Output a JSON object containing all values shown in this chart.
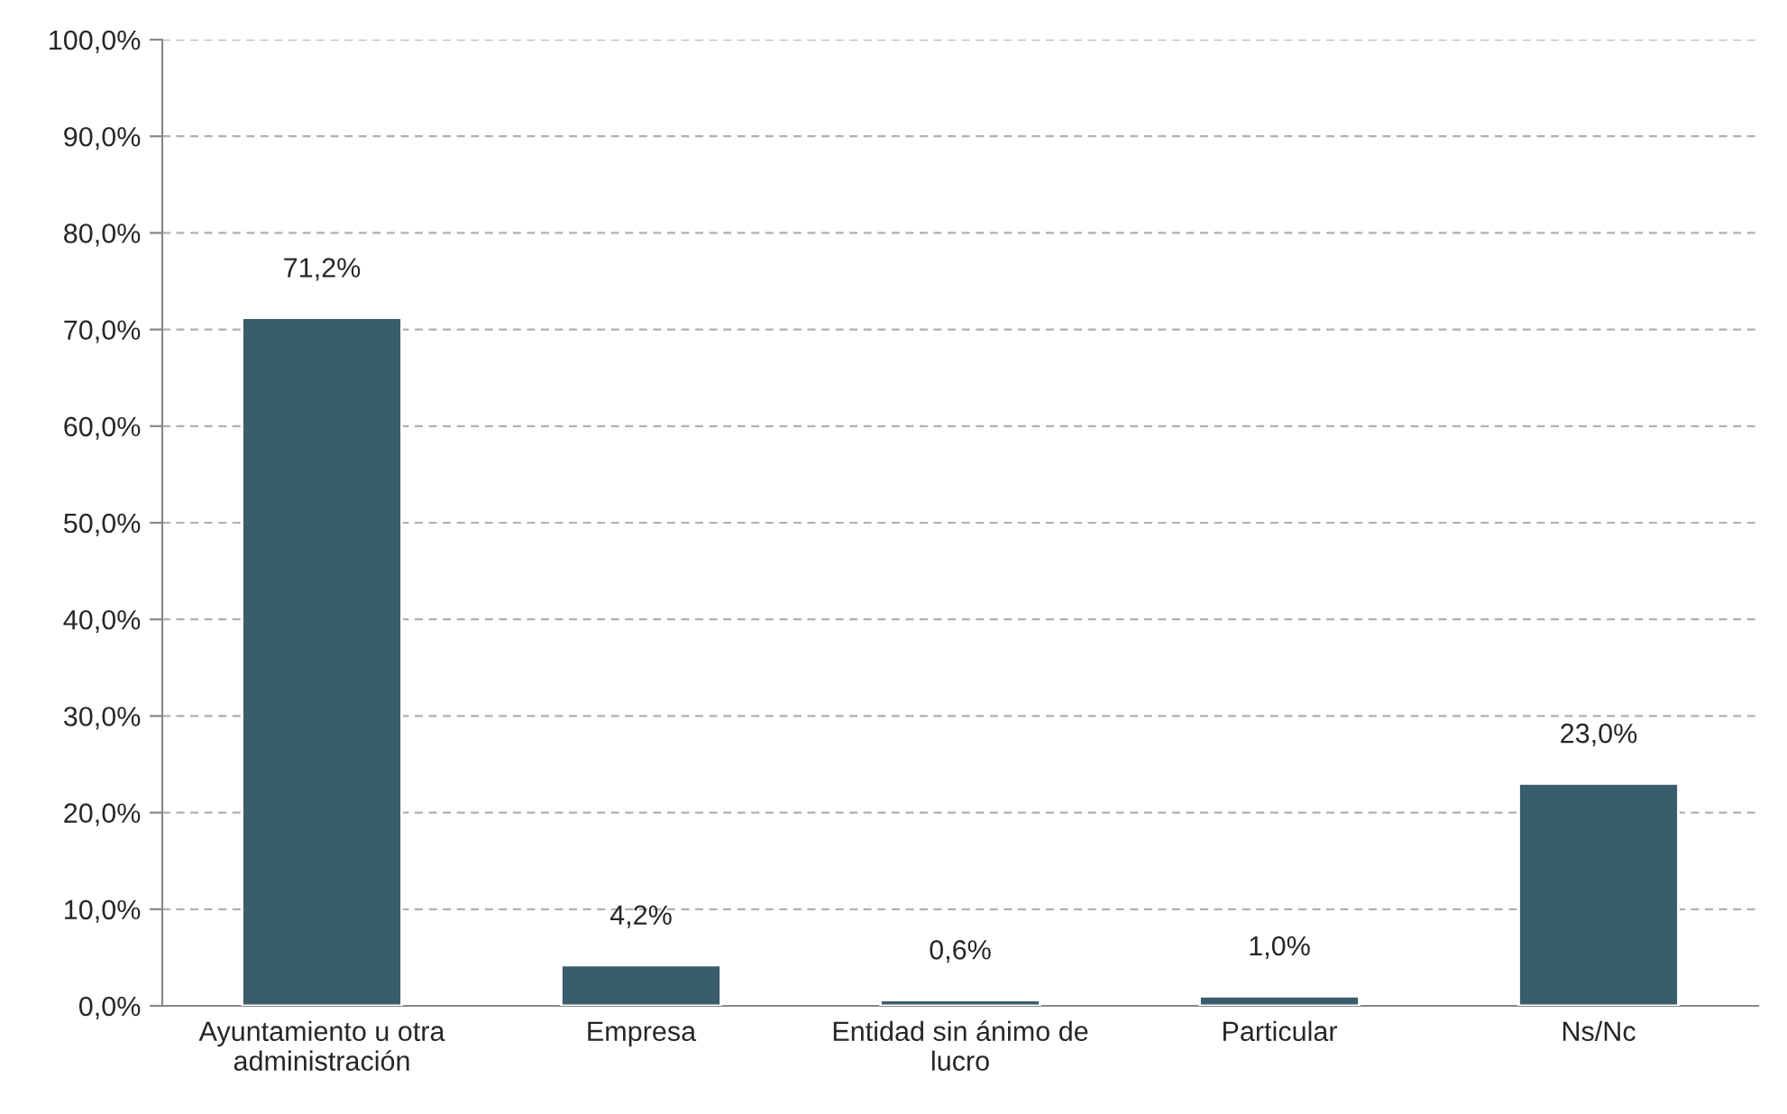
{
  "chart_data": {
    "type": "bar",
    "categories": [
      "Ayuntamiento u otra\nadministración",
      "Empresa",
      "Entidad sin ánimo de\nlucro",
      "Particular",
      "Ns/Nc"
    ],
    "values": [
      71.2,
      4.2,
      0.6,
      1.0,
      23.0
    ],
    "value_labels": [
      "71,2%",
      "4,2%",
      "0,6%",
      "1,0%",
      "23,0%"
    ],
    "color": "#3a5d6c",
    "ylim": [
      0,
      100
    ],
    "yticks": [
      {
        "value": 0,
        "label": "0,0%"
      },
      {
        "value": 10,
        "label": "10,0%"
      },
      {
        "value": 20,
        "label": "20,0%"
      },
      {
        "value": 30,
        "label": "30,0%"
      },
      {
        "value": 40,
        "label": "40,0%"
      },
      {
        "value": 50,
        "label": "50,0%"
      },
      {
        "value": 60,
        "label": "60,0%"
      },
      {
        "value": 70,
        "label": "70,0%"
      },
      {
        "value": 80,
        "label": "80,0%"
      },
      {
        "value": 90,
        "label": "90,0%"
      },
      {
        "value": 100,
        "label": "100,0%"
      }
    ],
    "grid": "y",
    "legend": false
  }
}
